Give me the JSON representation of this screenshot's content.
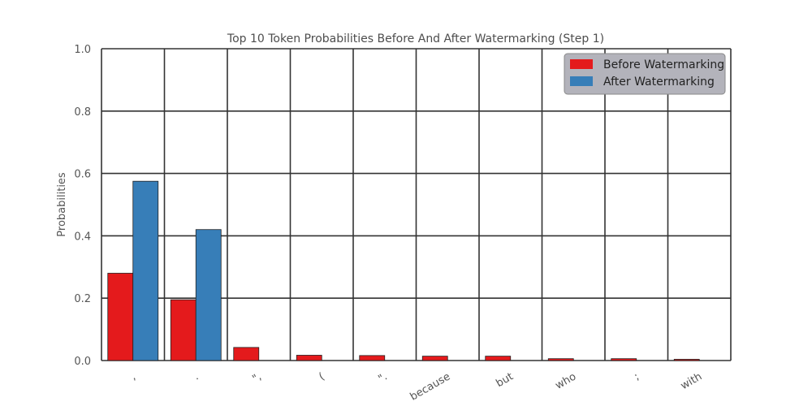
{
  "chart_data": {
    "type": "bar",
    "title": "Top 10 Token Probabilities Before And After Watermarking (Step 1)",
    "xlabel": "",
    "ylabel": "Probabilities",
    "ylim": [
      0,
      1.0
    ],
    "yticks": [
      "0.0",
      "0.2",
      "0.4",
      "0.6",
      "0.8",
      "1.0"
    ],
    "categories": [
      ",",
      ".",
      "\",",
      "(",
      "\".",
      "because",
      "but",
      "who",
      ";",
      "with"
    ],
    "series": [
      {
        "name": "Before Watermarking",
        "color": "#e41a1c",
        "values": [
          0.28,
          0.195,
          0.042,
          0.017,
          0.016,
          0.014,
          0.014,
          0.006,
          0.006,
          0.004
        ]
      },
      {
        "name": "After Watermarking",
        "color": "#377eb8",
        "values": [
          0.575,
          0.42,
          0.0,
          0.0,
          0.0,
          0.0,
          0.0,
          0.0,
          0.0,
          0.0
        ]
      }
    ],
    "grid": true,
    "legend_position": "top-right"
  }
}
